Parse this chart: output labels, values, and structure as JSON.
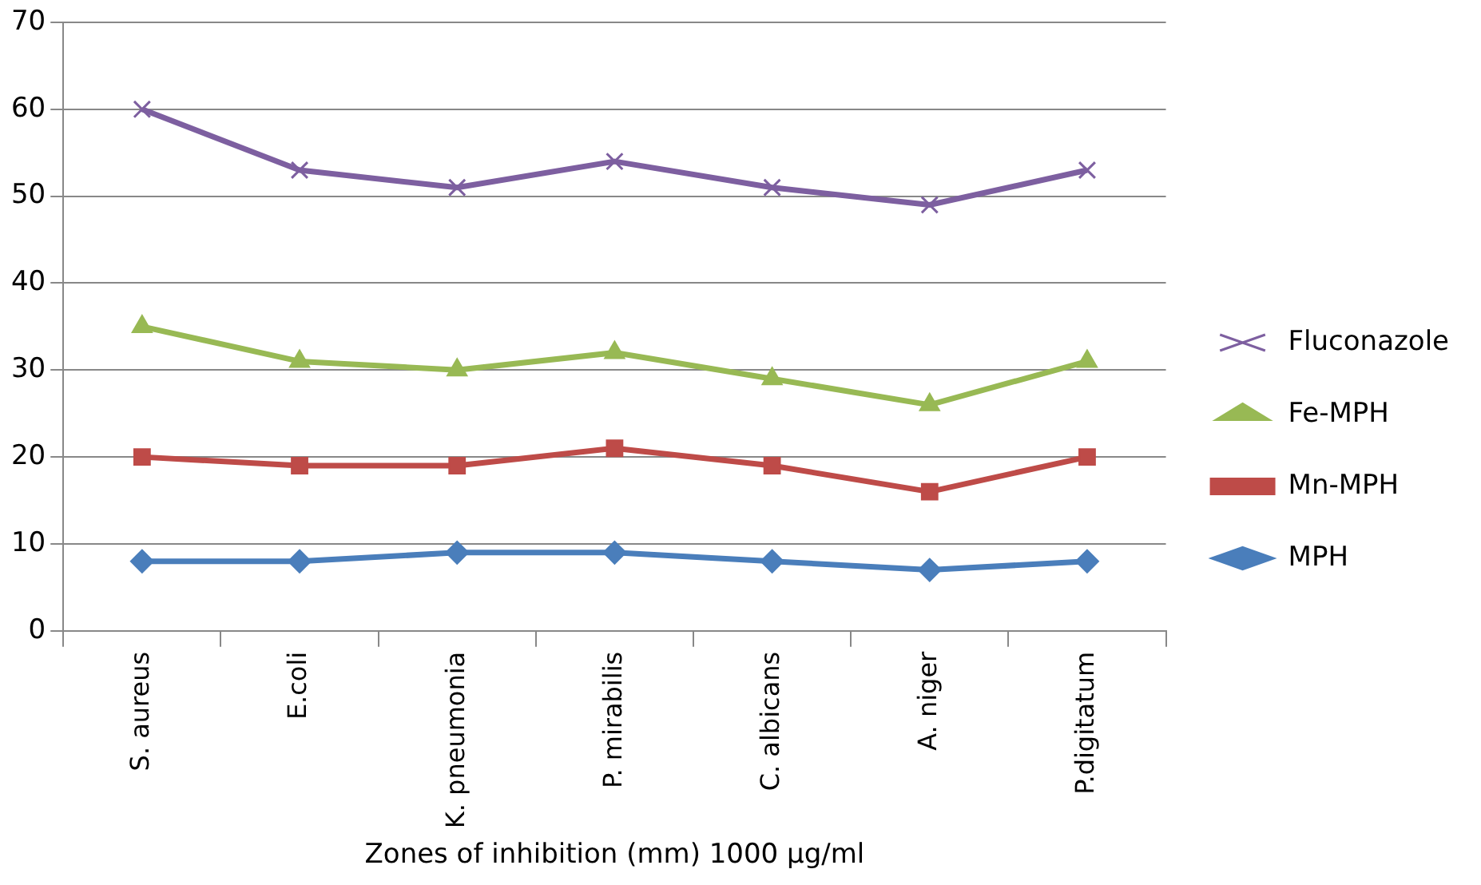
{
  "chart_data": {
    "type": "line",
    "xlabel": "Zones of inhibition (mm) 1000 µg/ml",
    "categories": [
      "S. aureus",
      "E.coli",
      "K. pneumonia",
      "P. mirabilis",
      "C. albicans",
      "A. niger",
      "P.digitatum"
    ],
    "series": [
      {
        "name": "MPH",
        "color": "#4a7ebb",
        "marker": "diamond",
        "values": [
          8,
          8,
          9,
          9,
          8,
          7,
          8
        ]
      },
      {
        "name": "Mn-MPH",
        "color": "#be4b48",
        "marker": "square",
        "values": [
          20,
          19,
          19,
          21,
          19,
          16,
          20
        ]
      },
      {
        "name": "Fe-MPH",
        "color": "#98b954",
        "marker": "triangle",
        "values": [
          35,
          31,
          30,
          32,
          29,
          26,
          31
        ]
      },
      {
        "name": "Fluconazole",
        "color": "#7d5fa0",
        "marker": "cross",
        "values": [
          60,
          53,
          51,
          54,
          51,
          49,
          53
        ]
      }
    ],
    "ylim": [
      0,
      70
    ],
    "yticks": [
      0,
      10,
      20,
      30,
      40,
      50,
      60,
      70
    ],
    "grid": "y",
    "legend": "right"
  }
}
